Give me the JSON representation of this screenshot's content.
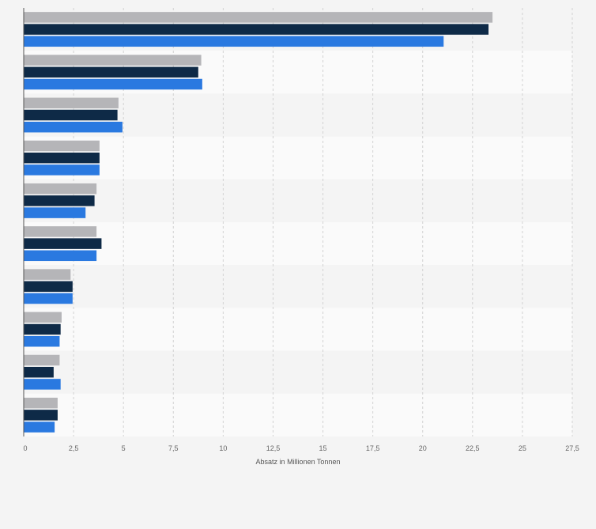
{
  "chart_data": {
    "type": "bar",
    "orientation": "horizontal",
    "title": "",
    "xlabel": "Absatz in Millionen Tonnen",
    "ylabel": "",
    "xlim": [
      0,
      27.5
    ],
    "x_ticks": [
      "0",
      "2,5",
      "5",
      "7,5",
      "10",
      "12,5",
      "15",
      "17,5",
      "20",
      "22,5",
      "25",
      "27,5"
    ],
    "x_tick_values": [
      0,
      2.5,
      5,
      7.5,
      10,
      12.5,
      15,
      17.5,
      20,
      22.5,
      25,
      27.5
    ],
    "categories": [
      "",
      "",
      "",
      "",
      "",
      "",
      "",
      "",
      "",
      ""
    ],
    "series": [
      {
        "name": "",
        "color": "#b5b5b8",
        "values": [
          23.5,
          8.9,
          4.75,
          3.8,
          3.65,
          3.65,
          2.35,
          1.9,
          1.8,
          1.7
        ]
      },
      {
        "name": "",
        "color": "#0e2a47",
        "values": [
          23.3,
          8.75,
          4.7,
          3.8,
          3.55,
          3.9,
          2.45,
          1.85,
          1.5,
          1.7
        ]
      },
      {
        "name": "",
        "color": "#2a79e0",
        "values": [
          21.05,
          8.95,
          4.95,
          3.8,
          3.1,
          3.65,
          2.45,
          1.8,
          1.85,
          1.55
        ]
      }
    ],
    "grid": true,
    "legend": "none"
  }
}
